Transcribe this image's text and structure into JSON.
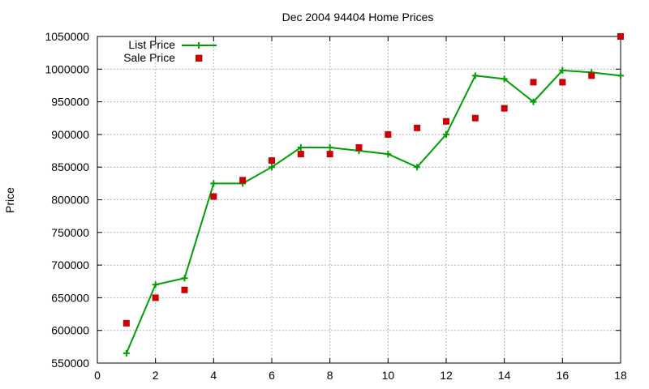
{
  "chart_data": {
    "type": "line",
    "title": "Dec 2004 94404 Home Prices",
    "xlabel": "",
    "ylabel": "Price",
    "xlim": [
      0,
      18
    ],
    "ylim": [
      550000,
      1050000
    ],
    "xticks": [
      0,
      2,
      4,
      6,
      8,
      10,
      12,
      14,
      16,
      18
    ],
    "yticks": [
      550000,
      600000,
      650000,
      700000,
      750000,
      800000,
      850000,
      900000,
      950000,
      1000000,
      1050000
    ],
    "grid": true,
    "legend_position": "top-left",
    "series": [
      {
        "name": "List Price",
        "style": "line+plus",
        "color": "#00a000",
        "x": [
          1,
          2,
          3,
          4,
          5,
          6,
          7,
          8,
          9,
          10,
          11,
          12,
          13,
          14,
          15,
          16,
          17,
          18
        ],
        "values": [
          565000,
          670000,
          680000,
          825000,
          825000,
          850000,
          880000,
          880000,
          875000,
          870000,
          850000,
          900000,
          990000,
          985000,
          950000,
          998000,
          995000,
          990000
        ]
      },
      {
        "name": "Sale Price",
        "style": "square-points",
        "color": "#cc0000",
        "x": [
          1,
          2,
          3,
          3.5,
          4,
          5,
          6,
          7,
          8,
          9,
          10,
          11,
          12,
          13,
          14,
          15,
          16,
          17,
          18
        ],
        "values": [
          611000,
          650000,
          662000,
          1017000,
          805000,
          830000,
          860000,
          870000,
          870000,
          880000,
          900000,
          910000,
          920000,
          925000,
          940000,
          980000,
          980000,
          990000,
          1050000
        ]
      }
    ]
  }
}
